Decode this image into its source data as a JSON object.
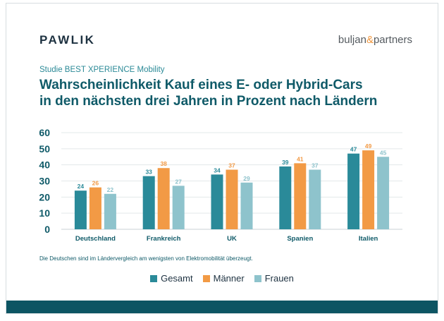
{
  "header": {
    "brand_left": "PAWLIK",
    "brand_right_part1": "buljan",
    "brand_right_amp": "&",
    "brand_right_part2": "partners"
  },
  "kicker": "Studie BEST XPERIENCE Mobility",
  "title_line1": "Wahrscheinlichkeit Kauf eines E- oder Hybrid-Cars",
  "title_line2": "in den nächsten drei Jahren in Prozent nach Ländern",
  "footnote": "Die Deutschen sind im Ländervergleich am wenigsten von Elektromobilität überzeugt.",
  "colors": {
    "gesamt": "#2a8a99",
    "maenner": "#f29a45",
    "frauen": "#8ec3cc",
    "axis_text": "#0f5a68",
    "grid": "#e3e8ea"
  },
  "chart_data": {
    "type": "bar",
    "categories": [
      "Deutschland",
      "Frankreich",
      "UK",
      "Spanien",
      "Italien"
    ],
    "series": [
      {
        "name": "Gesamt",
        "values": [
          24,
          33,
          34,
          39,
          47
        ]
      },
      {
        "name": "Männer",
        "values": [
          26,
          38,
          37,
          41,
          49
        ]
      },
      {
        "name": "Frauen",
        "values": [
          22,
          27,
          29,
          37,
          45
        ]
      }
    ],
    "ylim": [
      0,
      60
    ],
    "yticks": [
      0,
      10,
      20,
      30,
      40,
      50,
      60
    ],
    "grid": true,
    "legend_position": "bottom-center"
  }
}
